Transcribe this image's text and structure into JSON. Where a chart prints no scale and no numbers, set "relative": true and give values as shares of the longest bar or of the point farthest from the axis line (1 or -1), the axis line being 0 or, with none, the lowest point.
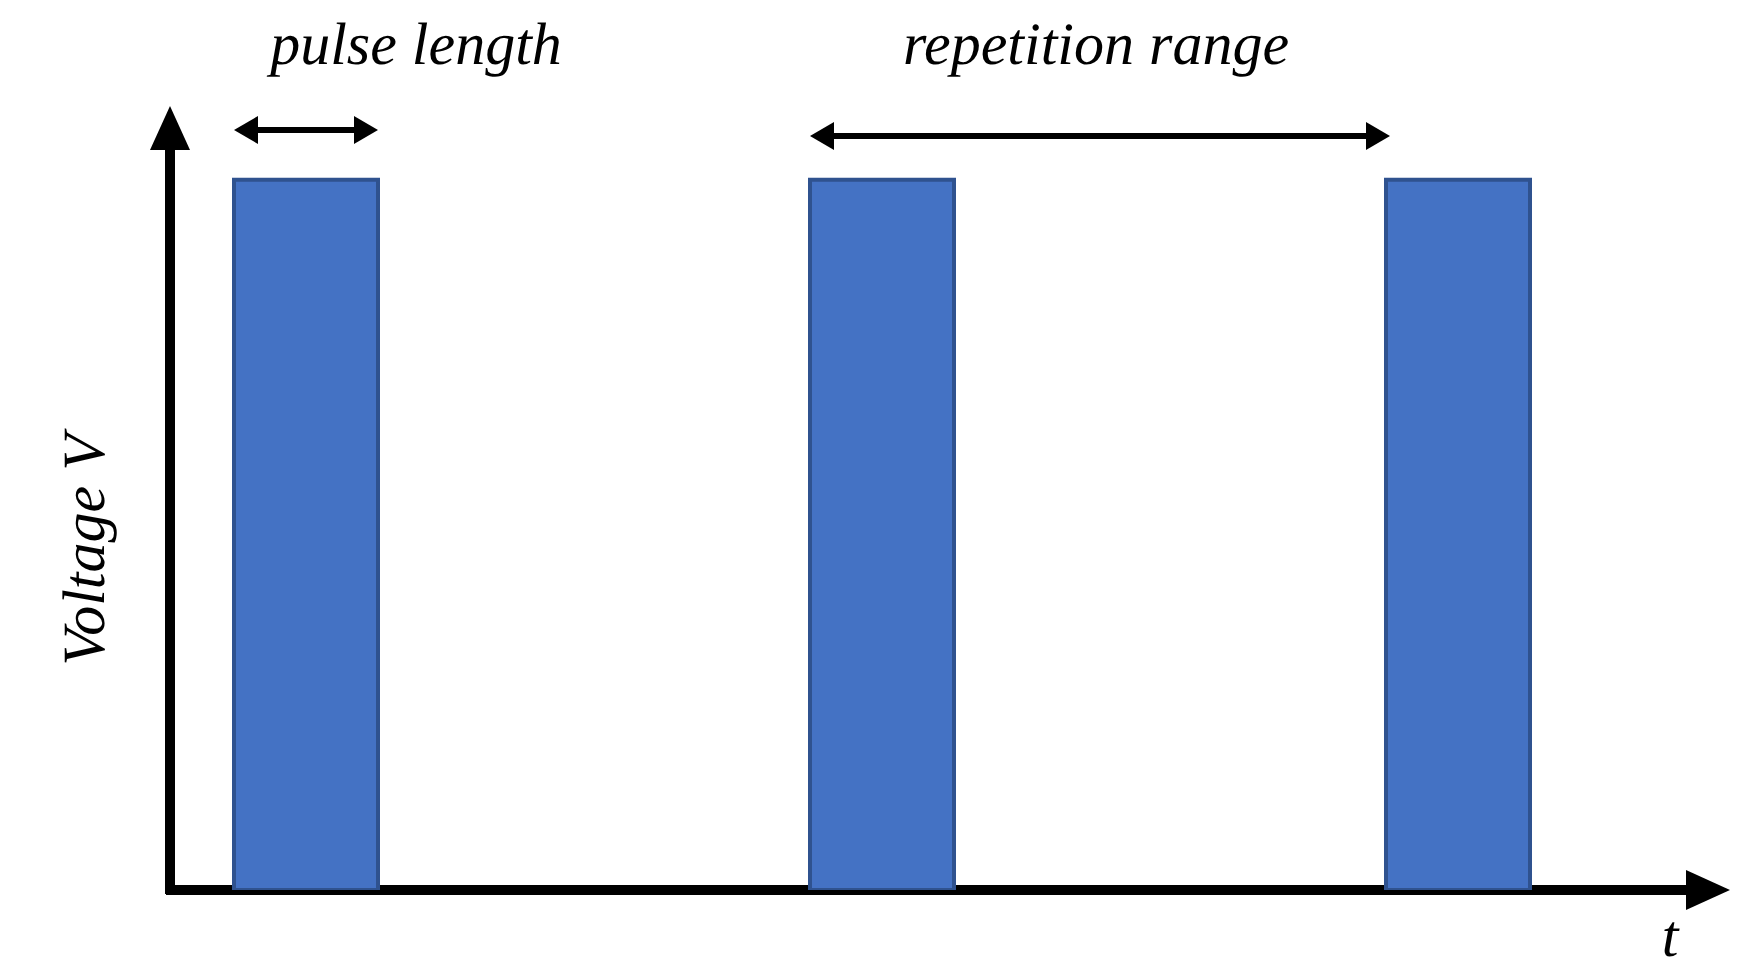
{
  "chart_data": {
    "type": "bar",
    "relative": true,
    "categories": [
      null,
      null,
      null
    ],
    "values": [
      1,
      1,
      1
    ],
    "color": "#4472c4",
    "xlabel": "t",
    "ylabel": "Voltage V",
    "tick_labels": false,
    "annotations": [
      "pulse length",
      "repetition range"
    ]
  }
}
